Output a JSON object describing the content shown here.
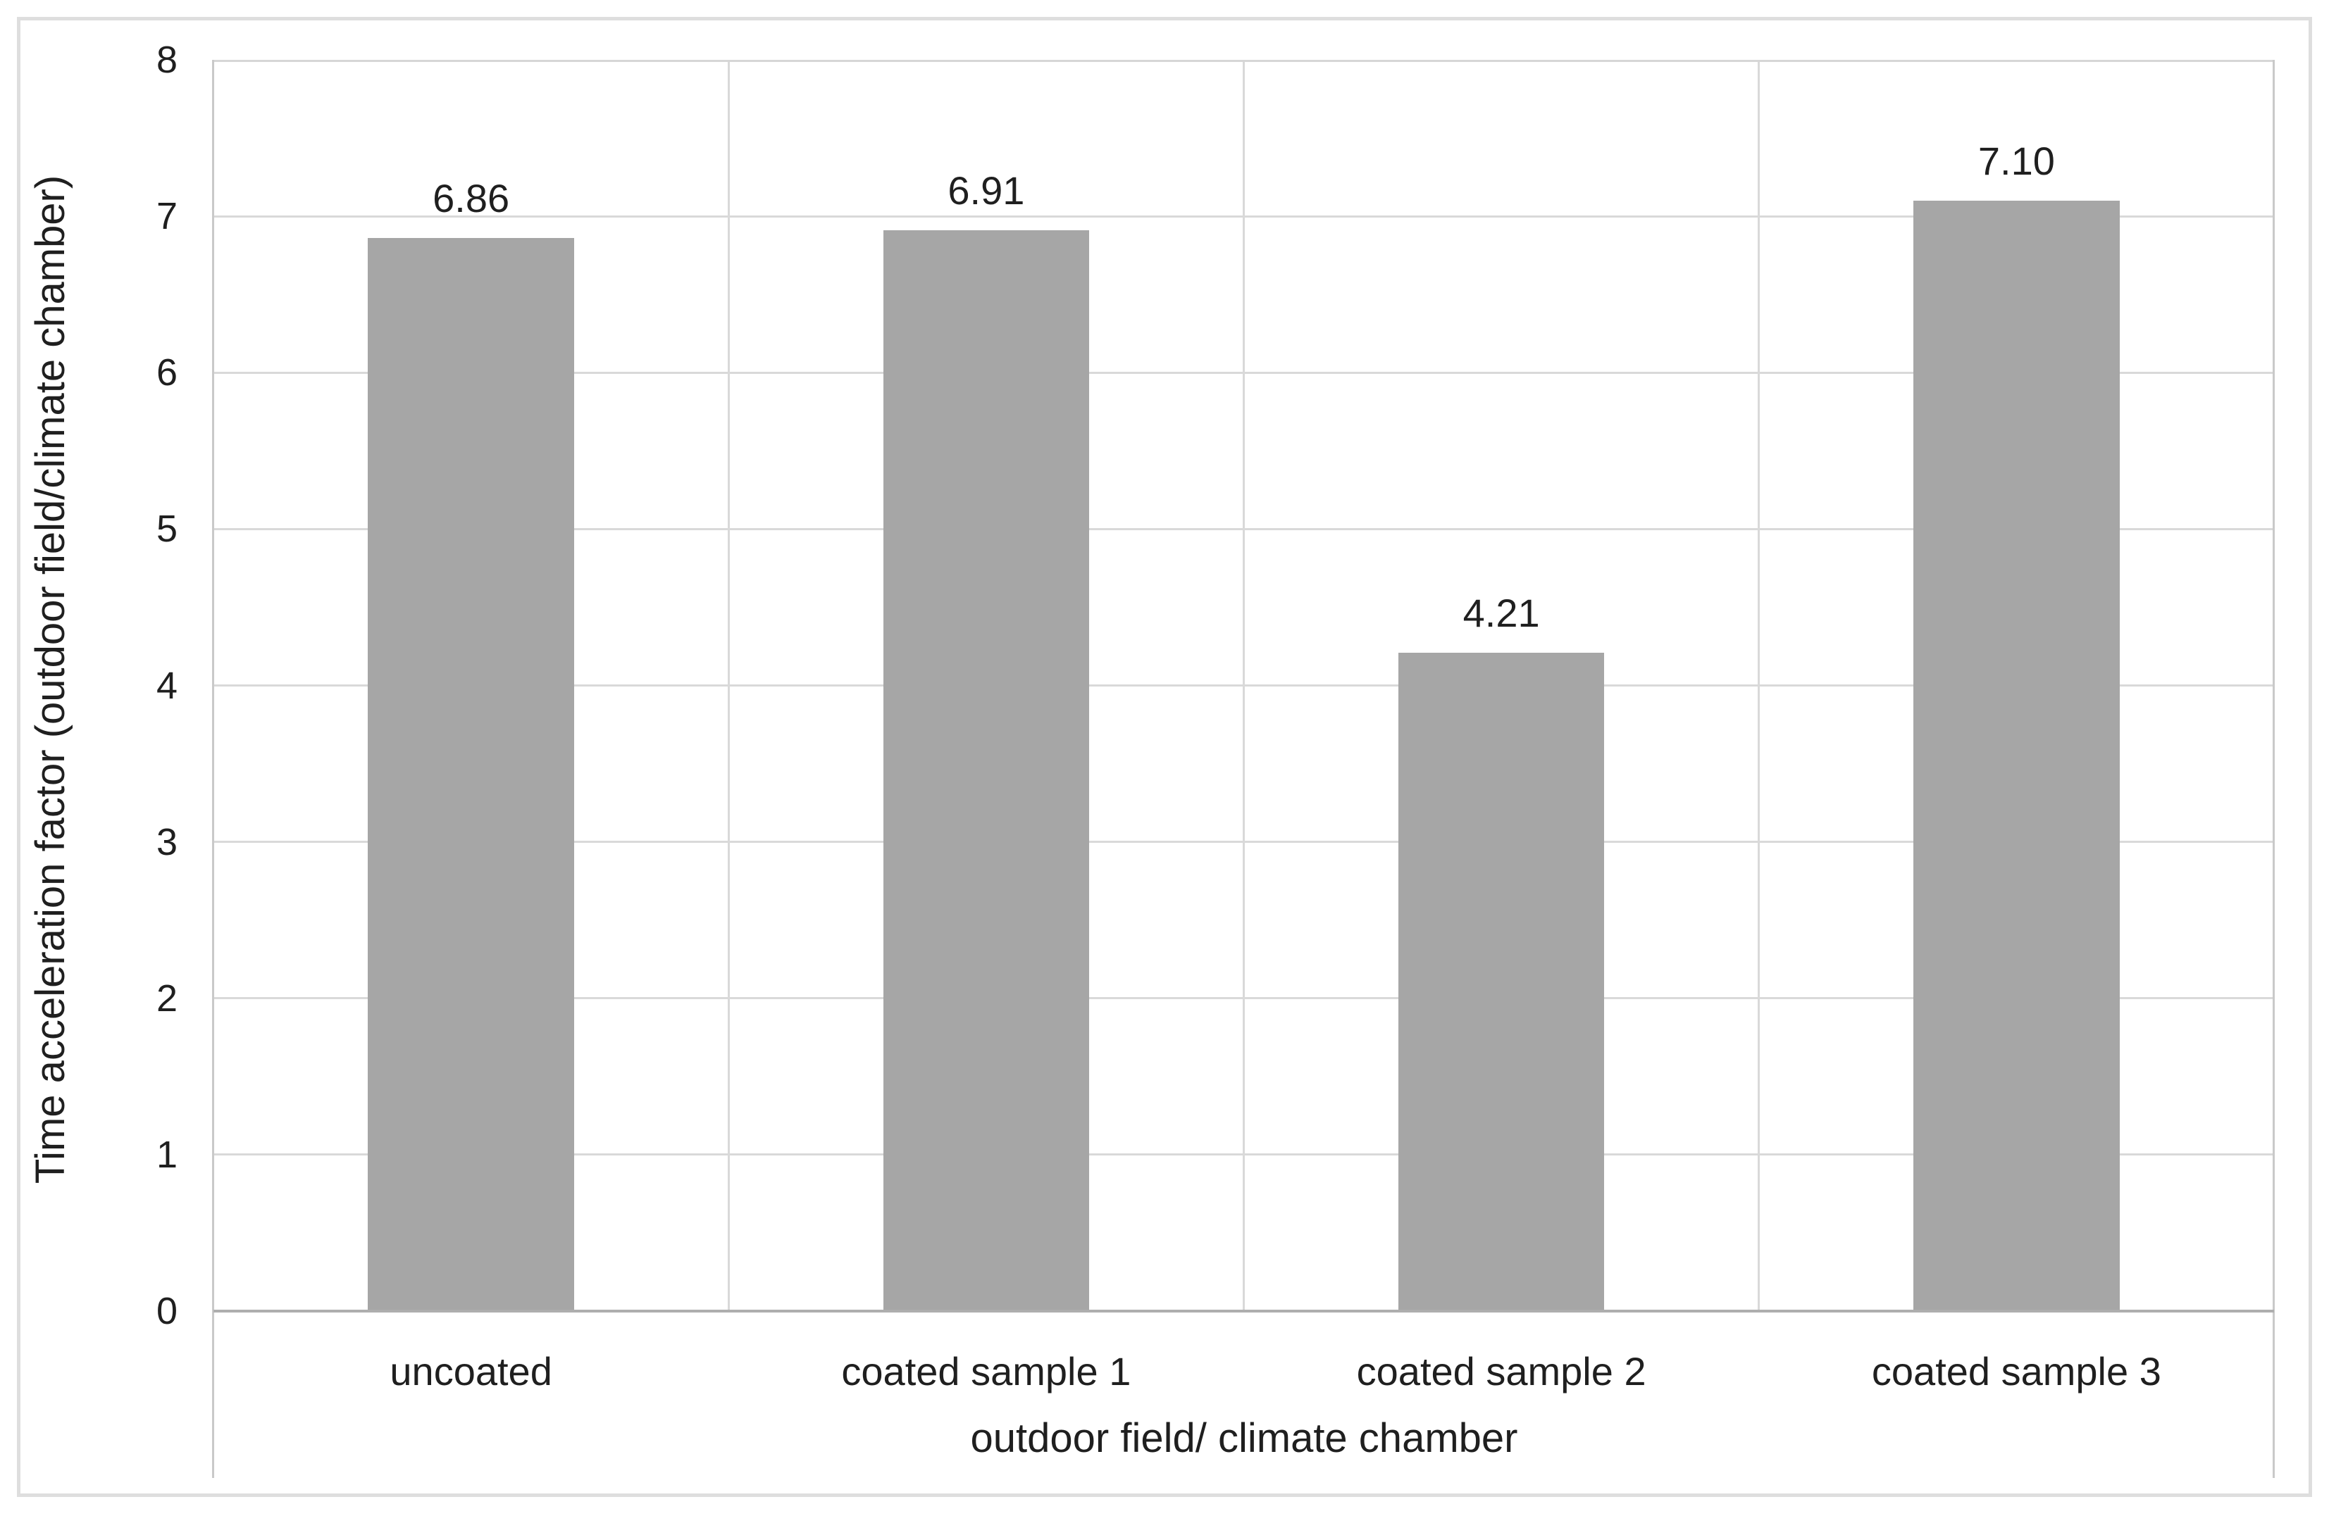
{
  "chart_data": {
    "type": "bar",
    "title": "",
    "categories": [
      "uncoated",
      "coated sample 1",
      "coated sample 2",
      "coated sample 3"
    ],
    "values": [
      6.86,
      6.91,
      4.21,
      7.1
    ],
    "data_labels": [
      "6.86",
      "6.91",
      "4.21",
      "7.10"
    ],
    "xlabel": "outdoor field/ climate chamber",
    "ylabel": "Time acceleration factor (outdoor field/climate chamber)",
    "ylim": [
      0,
      8
    ],
    "ytick_step": 1,
    "ytick_labels": [
      "0",
      "1",
      "2",
      "3",
      "4",
      "5",
      "6",
      "7",
      "8"
    ],
    "grid": true,
    "legend_position": "none",
    "bar_color": "#a6a6a6",
    "gridline_color": "#d9d9d9",
    "axis_line_color": "#aeaeae",
    "frame_color": "#dedede"
  }
}
